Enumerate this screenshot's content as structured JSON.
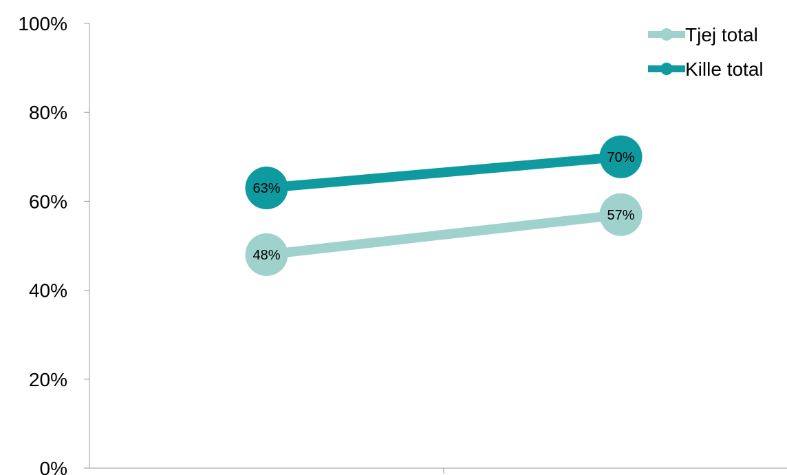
{
  "chart_data": {
    "type": "line",
    "categories": [
      "",
      ""
    ],
    "series": [
      {
        "name": "Tjej total",
        "values": [
          0.48,
          0.57
        ],
        "labels": [
          "48%",
          "57%"
        ],
        "color": "#a0d2cd"
      },
      {
        "name": "Kille total",
        "values": [
          0.63,
          0.7
        ],
        "labels": [
          "63%",
          "70%"
        ],
        "color": "#0f9aa0"
      }
    ],
    "yticks": [
      "0%",
      "20%",
      "40%",
      "60%",
      "80%",
      "100%"
    ],
    "ylim": [
      0,
      1
    ],
    "legend_position": "top-right",
    "grid": false,
    "axis_color": "#999999"
  }
}
